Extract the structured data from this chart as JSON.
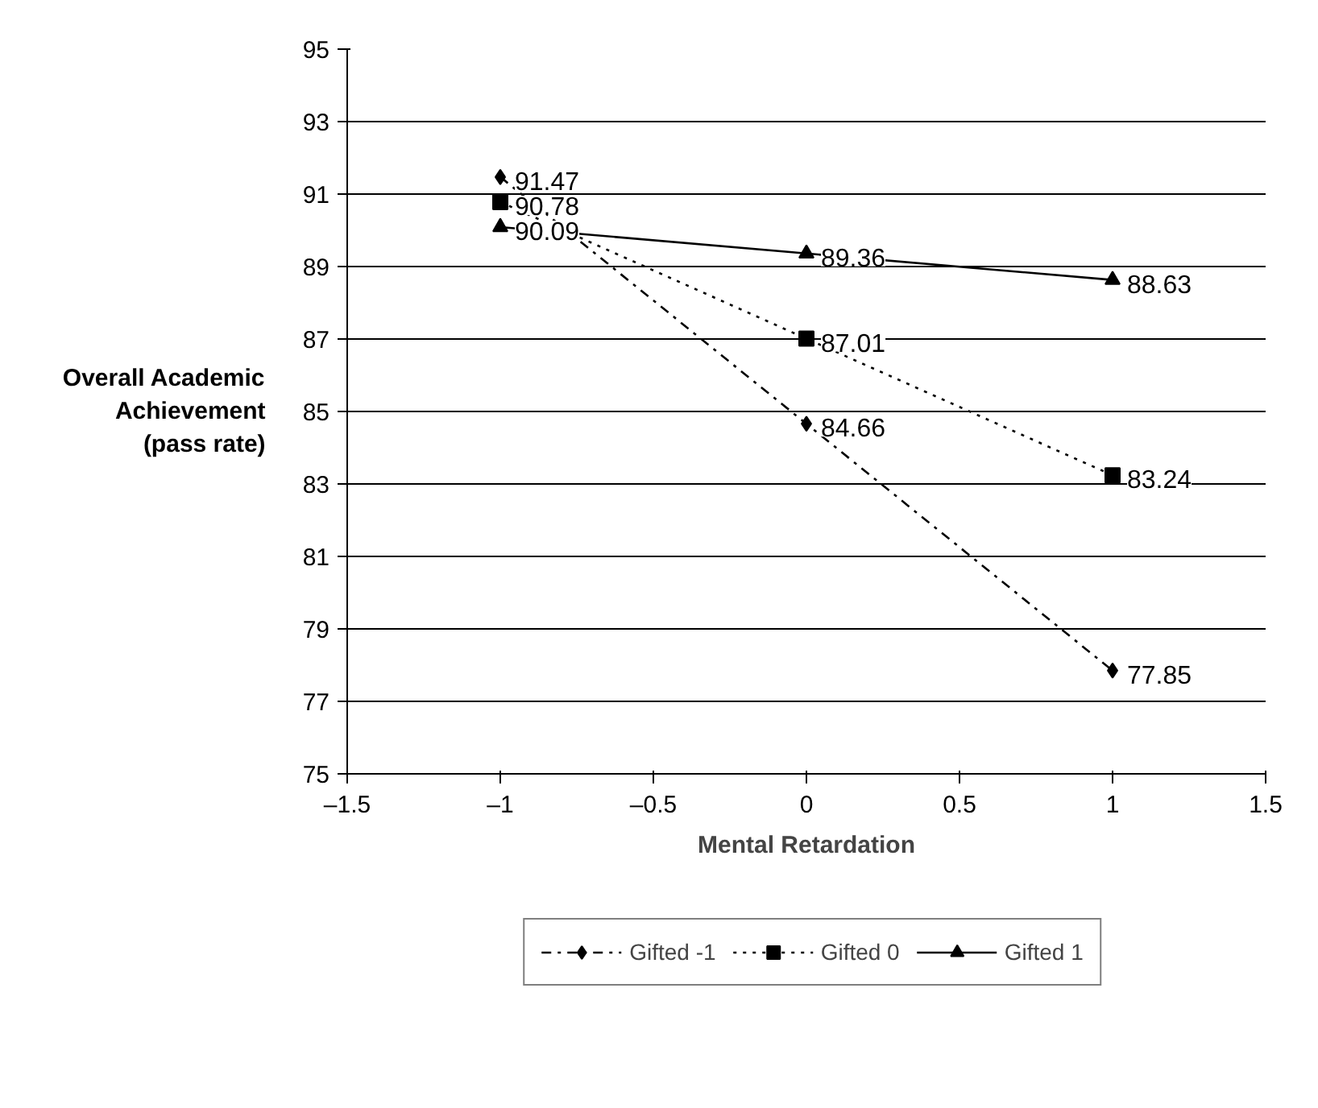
{
  "chart_data": {
    "type": "line",
    "xlabel": "Mental Retardation",
    "ylabel": "Overall Academic Achievement (pass rate)",
    "x": [
      -1,
      0,
      1
    ],
    "series": [
      {
        "name": "Gifted -1",
        "color": "#000000",
        "values": [
          91.47,
          84.66,
          77.85
        ],
        "marker": "diamond",
        "line_style": "dashed"
      },
      {
        "name": "Gifted 0",
        "color": "#000000",
        "values": [
          90.78,
          87.01,
          83.24
        ],
        "marker": "square",
        "line_style": "dotted"
      },
      {
        "name": "Gifted 1",
        "color": "#000000",
        "values": [
          90.09,
          89.36,
          88.63
        ],
        "marker": "triangle",
        "line_style": "solid"
      }
    ],
    "xlim": [
      -1.5,
      1.5
    ],
    "xticks": [
      {
        "value": -1.5,
        "label": "–1.5"
      },
      {
        "value": -1,
        "label": "–1"
      },
      {
        "value": -0.5,
        "label": "–0.5"
      },
      0,
      0.5,
      1,
      1.5
    ],
    "ylim": [
      75,
      95
    ],
    "yticks": [
      75,
      77,
      79,
      81,
      83,
      85,
      87,
      89,
      91,
      93,
      95
    ],
    "grid": "y",
    "legend": "bottom",
    "data_labels": true
  }
}
